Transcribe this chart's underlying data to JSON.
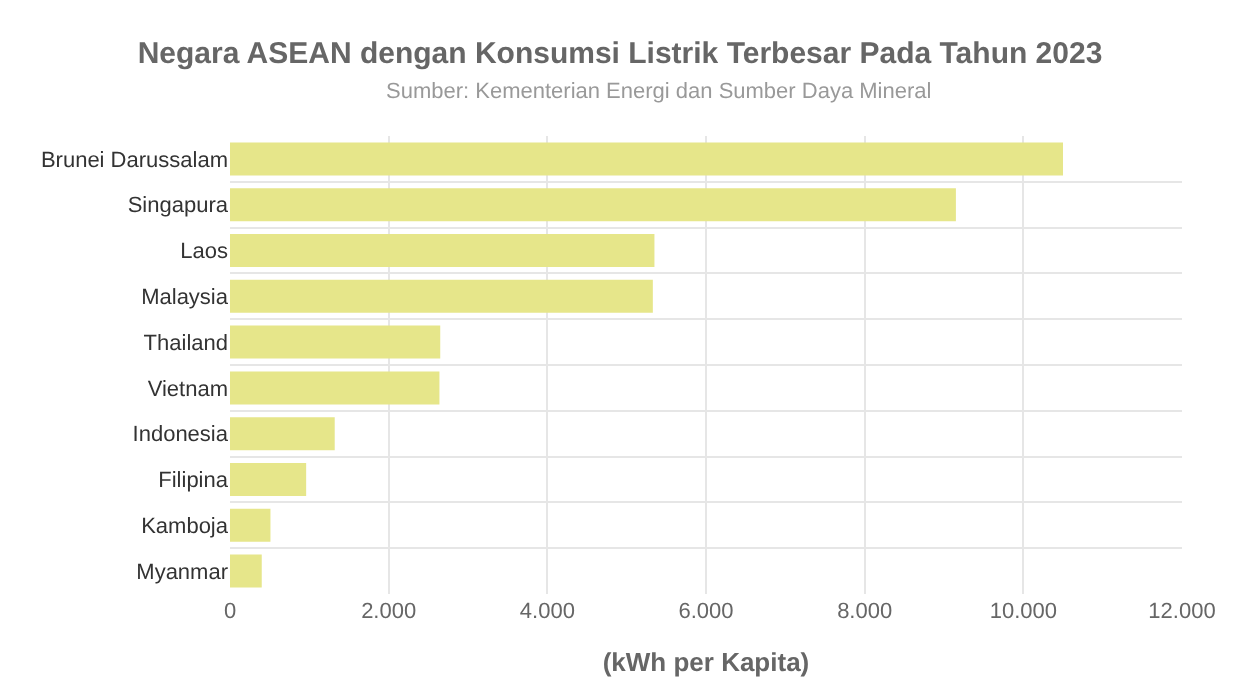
{
  "chart_data": {
    "type": "bar",
    "orientation": "horizontal",
    "title": "Negara ASEAN dengan Konsumsi Listrik Terbesar Pada Tahun 2023",
    "subtitle": "Sumber: Kementerian Energi dan Sumber Daya Mineral",
    "xlabel": "(kWh per Kapita)",
    "categories": [
      "Brunei Darussalam",
      "Singapura",
      "Laos",
      "Malaysia",
      "Thailand",
      "Vietnam",
      "Indonesia",
      "Filipina",
      "Kamboja",
      "Myanmar"
    ],
    "values": [
      10500,
      9150,
      5350,
      5330,
      2650,
      2640,
      1320,
      960,
      510,
      400
    ],
    "color": "#e6e68a",
    "xlim": [
      0,
      12000
    ],
    "xticks": [
      0,
      {
        "value": 2000,
        "label": "2.000"
      },
      {
        "value": 4000,
        "label": "4.000"
      },
      {
        "value": 6000,
        "label": "6.000"
      },
      {
        "value": 8000,
        "label": "8.000"
      },
      {
        "value": 10000,
        "label": "10.000"
      },
      {
        "value": 12000,
        "label": "12.000"
      }
    ],
    "grid": true
  }
}
